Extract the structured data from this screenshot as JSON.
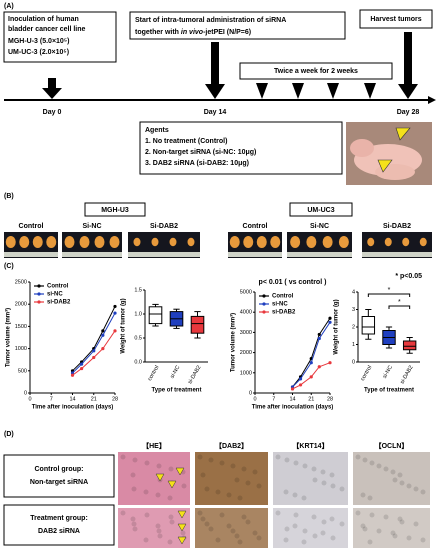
{
  "panel_a": {
    "label": "(A)",
    "inoculation": {
      "title_lines": [
        "Inoculation of human",
        "bladder cancer cell line"
      ],
      "lines": [
        "MGH-U-3  (5.0×10⁵)",
        "UM-UC-3  (2.0×10⁵)"
      ]
    },
    "start": {
      "line1": "Start of intra-tumoral administration of siRNA",
      "prefix": "together with ",
      "italic": "in vivo",
      "suffix": "-jetPEI (N/P=6)"
    },
    "harvest": "Harvest tumors",
    "schedule": "Twice a week for 2 weeks",
    "days": [
      "Day 0",
      "Day 14",
      "Day 28"
    ],
    "agents": {
      "title": "Agents",
      "items": [
        "1.      No treatment (Control)",
        "2.      Non-target siRNA  (si-NC:  10μg)",
        "3.      DAB2 siRNA  (si-DAB2:  10μg)"
      ]
    }
  },
  "panel_b": {
    "label": "(B)",
    "cell_lines": [
      "MGH-U3",
      "UM-UC3"
    ],
    "groups": [
      "Control",
      "Si-NC",
      "Si-DAB2"
    ]
  },
  "panel_c": {
    "label": "(C)"
  },
  "chart_data": [
    {
      "type": "line",
      "x": [
        14,
        17,
        21,
        24,
        28
      ],
      "xlim": [
        0,
        28
      ],
      "xticks": [
        0,
        7,
        14,
        21,
        28
      ],
      "ylim": [
        0,
        2500
      ],
      "yticks": [
        0,
        500,
        1000,
        1500,
        2000,
        2500
      ],
      "x_label": "Time after inoculation (days)",
      "y_label": "Tumor volume (mm³)",
      "legend": "top-left",
      "series": [
        {
          "name": "Control",
          "color": "#000000",
          "values": [
            500,
            700,
            1000,
            1400,
            1950
          ]
        },
        {
          "name": "si-NC",
          "color": "#1f3fbf",
          "values": [
            450,
            650,
            950,
            1300,
            1800
          ]
        },
        {
          "name": "si-DAB2",
          "color": "#e8383d",
          "values": [
            400,
            550,
            800,
            1000,
            1400
          ]
        }
      ]
    },
    {
      "type": "box",
      "categories": [
        "control",
        "si-NC",
        "si-DAB2"
      ],
      "colors": [
        "#ffffff",
        "#1f3fbf",
        "#e8383d"
      ],
      "ylim": [
        0,
        1.5
      ],
      "yticks": [
        {
          "value": 0,
          "label": "0.0"
        },
        0.5,
        {
          "value": 1,
          "label": "1.0"
        },
        1.5
      ],
      "x_label": "Type of treatment",
      "y_label": "Weight of tumor (g)",
      "boxes": [
        {
          "min": 0.75,
          "q1": 0.8,
          "median": 1.0,
          "q3": 1.15,
          "max": 1.2
        },
        {
          "min": 0.7,
          "q1": 0.75,
          "median": 0.9,
          "q3": 1.05,
          "max": 1.1
        },
        {
          "min": 0.5,
          "q1": 0.6,
          "median": 0.8,
          "q3": 0.95,
          "max": 1.05
        }
      ]
    },
    {
      "type": "line",
      "title": "p< 0.01 ( vs control )",
      "x": [
        14,
        17,
        21,
        24,
        28
      ],
      "xlim": [
        0,
        28
      ],
      "xticks": [
        0,
        7,
        14,
        21,
        28
      ],
      "ylim": [
        0,
        5000
      ],
      "yticks": [
        0,
        1000,
        2000,
        3000,
        4000,
        5000
      ],
      "x_label": "Time after inoculation (days)",
      "y_label": "Tumor volume (mm³)",
      "legend": "top-left",
      "series": [
        {
          "name": "Control",
          "color": "#000000",
          "values": [
            300,
            800,
            1700,
            2900,
            3700
          ]
        },
        {
          "name": "si-NC",
          "color": "#1f3fbf",
          "values": [
            300,
            700,
            1500,
            2700,
            3500
          ]
        },
        {
          "name": "si-DAB2",
          "color": "#e8383d",
          "values": [
            200,
            400,
            800,
            1300,
            1500
          ]
        }
      ]
    },
    {
      "type": "box",
      "categories": [
        "control",
        "si-NC",
        "si-DAB2"
      ],
      "colors": [
        "#ffffff",
        "#1f3fbf",
        "#e8383d"
      ],
      "ylim": [
        0,
        4
      ],
      "yticks": [
        0,
        1,
        2,
        3,
        4
      ],
      "x_label": "Type of treatment",
      "y_label": "Weight of tumor (g)",
      "annotations": [
        "* p<0.05",
        "*",
        "*"
      ],
      "boxes": [
        {
          "min": 1.3,
          "q1": 1.6,
          "median": 2.0,
          "q3": 2.6,
          "max": 3.0
        },
        {
          "min": 0.8,
          "q1": 1.0,
          "median": 1.4,
          "q3": 1.8,
          "max": 2.0
        },
        {
          "min": 0.5,
          "q1": 0.7,
          "median": 0.9,
          "q3": 1.2,
          "max": 1.4
        }
      ]
    }
  ],
  "panel_d": {
    "label": "(D)",
    "stains": [
      "【HE】",
      "【DAB2】",
      "【KRT14】",
      "【OCLN】"
    ],
    "rows": [
      {
        "group": "Control group:",
        "treatment": "Non-target siRNA"
      },
      {
        "group": "Treatment group:",
        "treatment": "DAB2 siRNA"
      }
    ]
  }
}
